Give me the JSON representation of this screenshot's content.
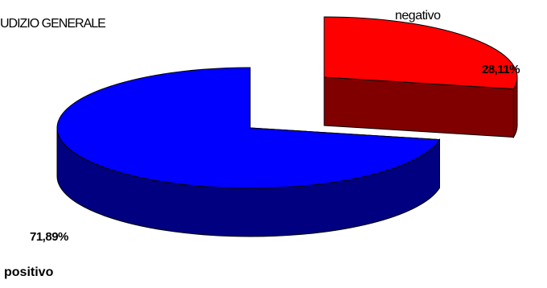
{
  "chart_data": {
    "type": "pie",
    "title": "UDIZIO GENERALE",
    "categories": [
      "negativo",
      "positivo"
    ],
    "values": [
      28.11,
      71.89
    ],
    "value_labels": [
      "28,11%",
      "71,89%"
    ],
    "colors": {
      "negativo": {
        "top": "#ff0000",
        "side": "#800000"
      },
      "positivo": {
        "top": "#0000ff",
        "side": "#000080"
      }
    },
    "style": "3d-exploded-pie",
    "legend": "none"
  }
}
